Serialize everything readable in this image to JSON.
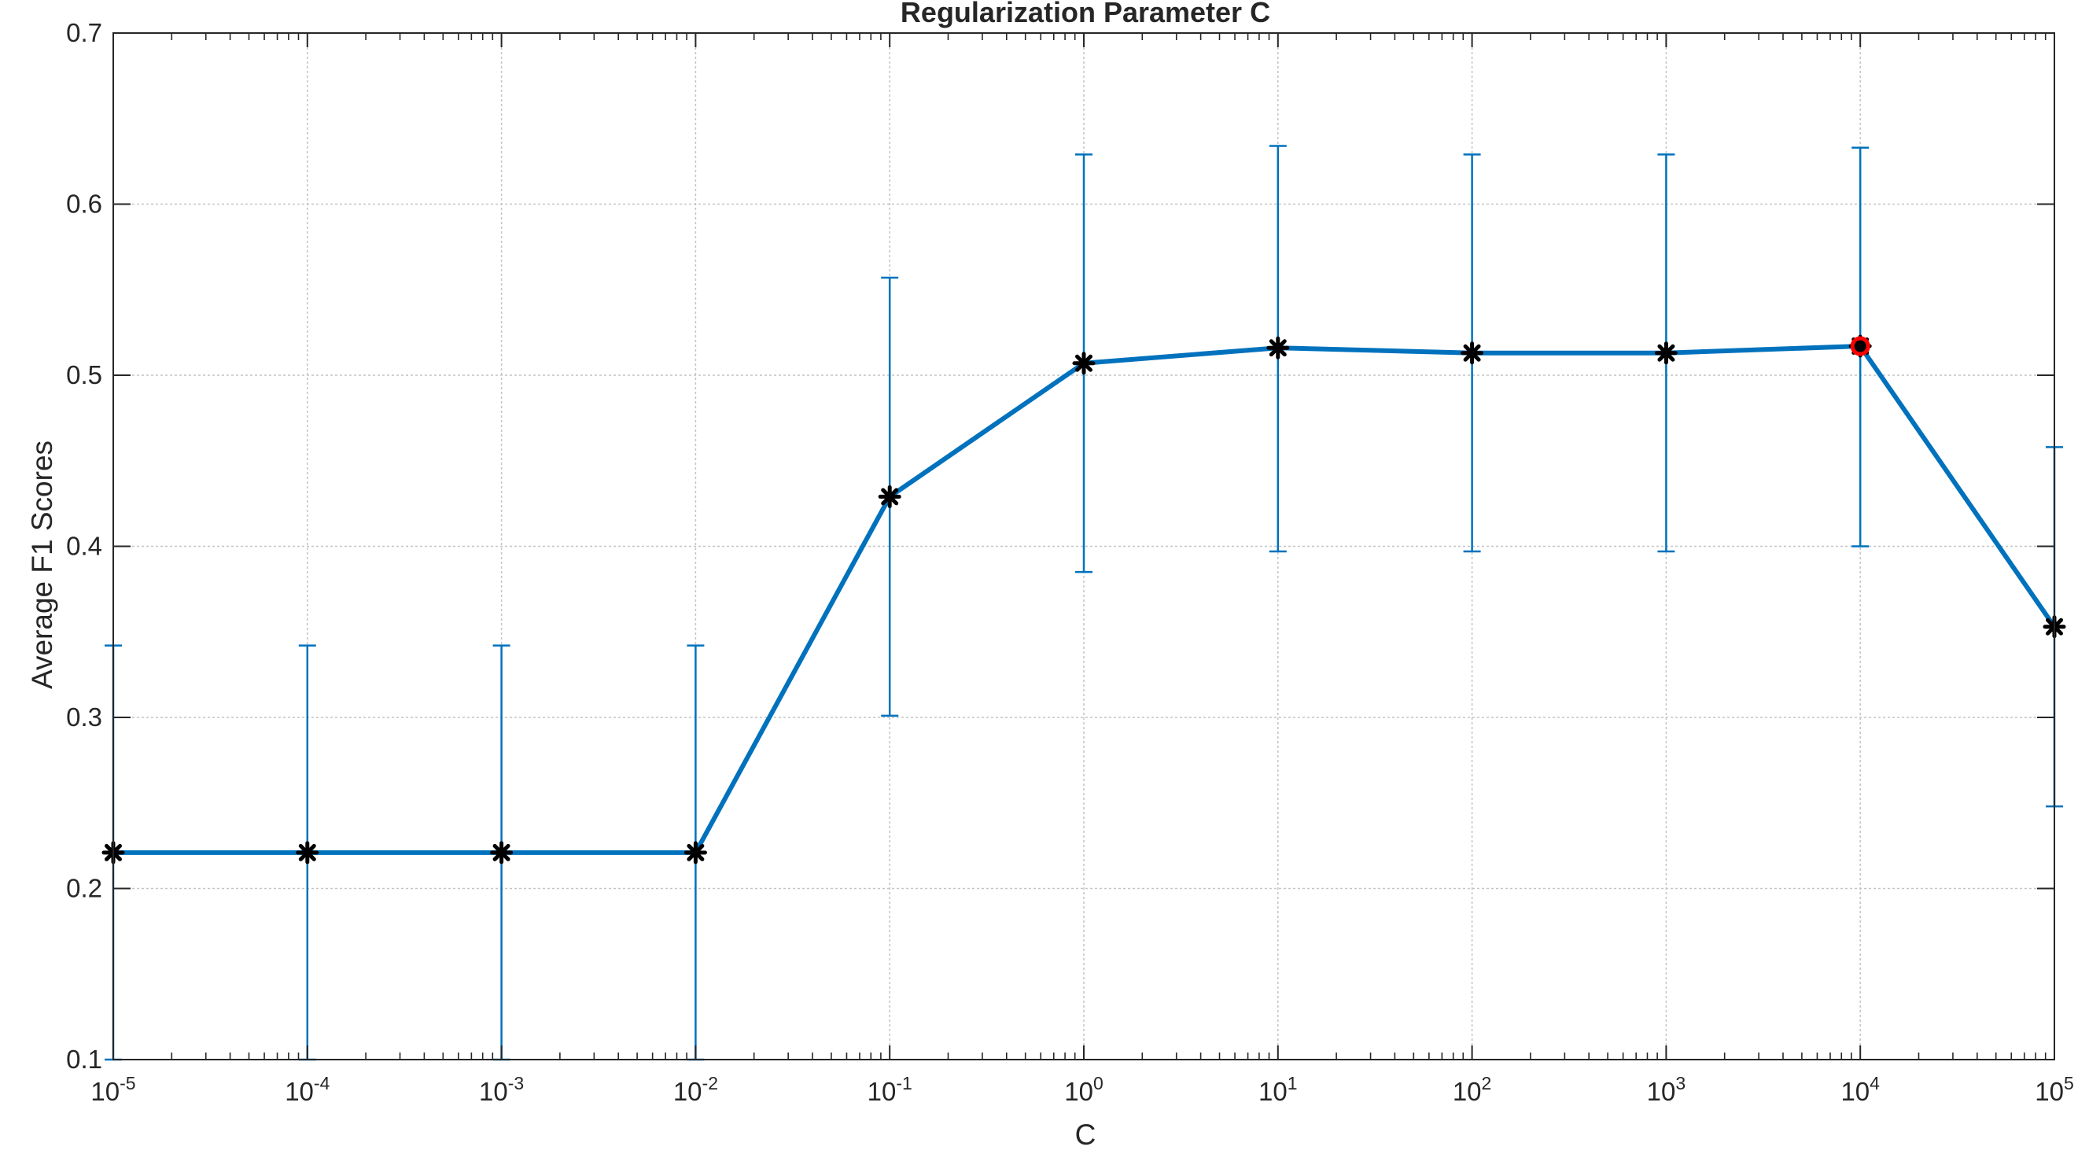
{
  "chart_data": {
    "type": "line",
    "title": "Regularization Parameter C",
    "xlabel": "C",
    "ylabel": "Average F1 Scores",
    "xscale": "log",
    "xlim": [
      1e-05,
      100000
    ],
    "ylim": [
      0.1,
      0.7
    ],
    "grid": true,
    "x": [
      1e-05,
      0.0001,
      0.001,
      0.01,
      0.1,
      1,
      10,
      100,
      1000,
      10000,
      100000
    ],
    "x_tick_labels": [
      {
        "base": "10",
        "exp": "-5"
      },
      {
        "base": "10",
        "exp": "-4"
      },
      {
        "base": "10",
        "exp": "-3"
      },
      {
        "base": "10",
        "exp": "-2"
      },
      {
        "base": "10",
        "exp": "-1"
      },
      {
        "base": "10",
        "exp": "0"
      },
      {
        "base": "10",
        "exp": "1"
      },
      {
        "base": "10",
        "exp": "2"
      },
      {
        "base": "10",
        "exp": "3"
      },
      {
        "base": "10",
        "exp": "4"
      },
      {
        "base": "10",
        "exp": "5"
      }
    ],
    "y_ticks": [
      "0.1",
      "0.2",
      "0.3",
      "0.4",
      "0.5",
      "0.6",
      "0.7"
    ],
    "series": [
      {
        "values": [
          0.221,
          0.221,
          0.221,
          0.221,
          0.429,
          0.507,
          0.516,
          0.513,
          0.513,
          0.517,
          0.353
        ],
        "err_low": [
          0.1,
          0.1,
          0.1,
          0.1,
          0.301,
          0.385,
          0.397,
          0.397,
          0.397,
          0.4,
          0.248
        ],
        "err_high": [
          0.342,
          0.342,
          0.342,
          0.342,
          0.557,
          0.629,
          0.634,
          0.629,
          0.629,
          0.633,
          0.458
        ],
        "color": "#0072BD",
        "marker_color": "#000000"
      }
    ],
    "highlight": {
      "x": 10000,
      "y": 0.517,
      "color": "#FF0000"
    }
  }
}
